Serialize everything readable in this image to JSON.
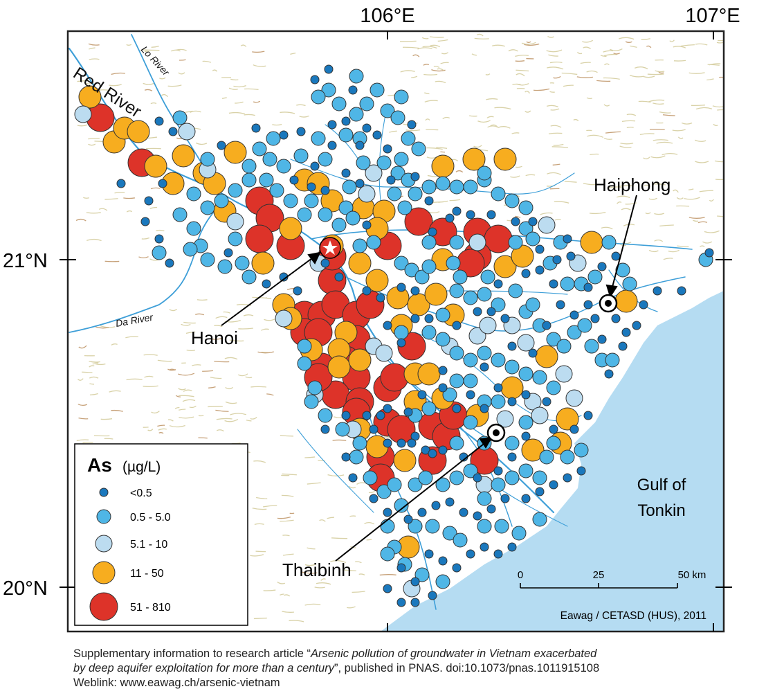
{
  "axes": {
    "lon_labels": [
      "106°E",
      "107°E"
    ],
    "lat_labels": [
      "21°N",
      "20°N"
    ]
  },
  "rivers": {
    "red": "Red River",
    "lo": "Lo River",
    "da": "Da River"
  },
  "cities": {
    "hanoi": "Hanoi",
    "haiphong": "Haiphong",
    "thaibinh": "Thaibinh"
  },
  "sea_label": {
    "line1": "Gulf of",
    "line2": "Tonkin"
  },
  "legend": {
    "title_element": "As",
    "title_unit": "(µg/L)",
    "classes": [
      {
        "label": "<0.5",
        "color": "#1a78bd"
      },
      {
        "label": "0.5 - 5.0",
        "color": "#4fb6e6"
      },
      {
        "label": "5.1 - 10",
        "color": "#bcdcf0"
      },
      {
        "label": "11 - 50",
        "color": "#f7ad1f"
      },
      {
        "label": "51 - 810",
        "color": "#dd3329"
      }
    ]
  },
  "scale_bar": {
    "ticks": [
      "0",
      "25",
      "50 km"
    ]
  },
  "credit": "Eawag / CETASD (HUS), 2011",
  "caption": {
    "line1_prefix": "Supplementary information to research article “",
    "line1_title": "Arsenic pollution of groundwater in Vietnam exacerbated",
    "line2_title": "by deep aquifer exploitation for more than a century",
    "line2_suffix": "”, published in PNAS. doi:10.1073/pnas.1011915108",
    "line3": "Weblink: www.eawag.ch/arsenic-vietnam"
  },
  "colors": {
    "sea": "#b5dcf2",
    "river": "#3e9fd8",
    "terrain": "#d9d2a8",
    "terrain_dark": "#c7a27a"
  }
}
